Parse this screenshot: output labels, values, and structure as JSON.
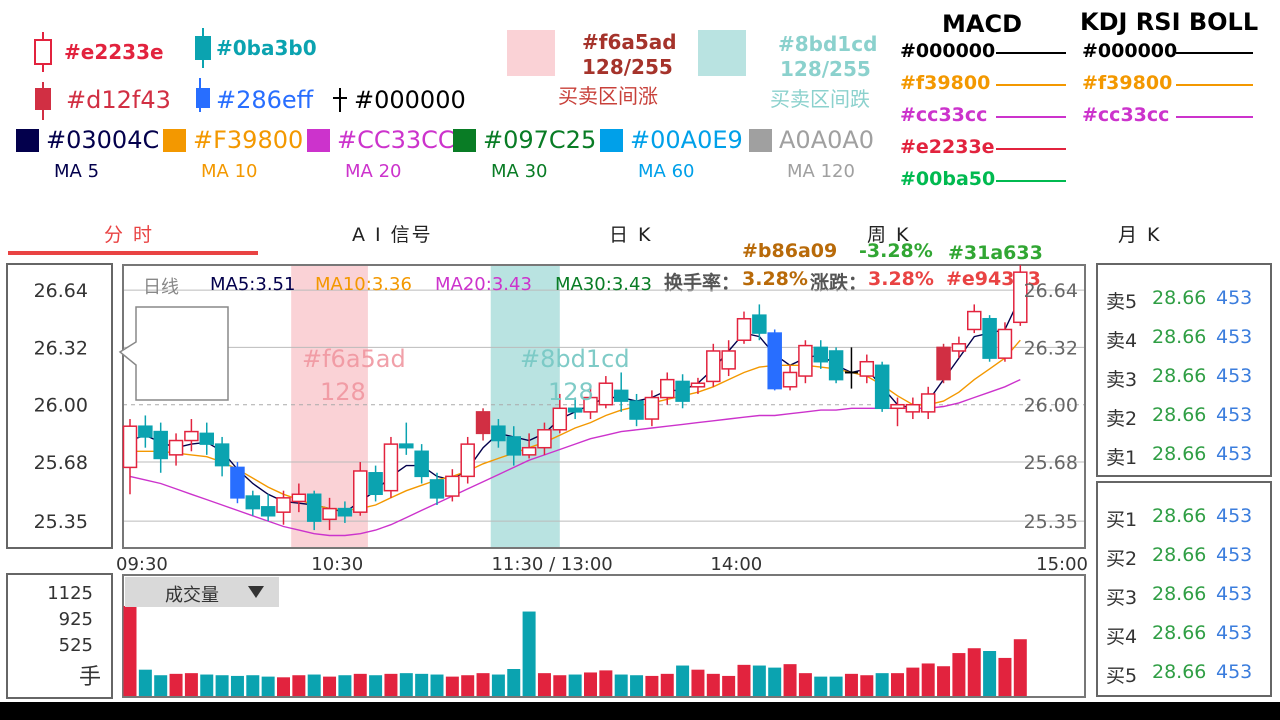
{
  "legend": {
    "candle_hollow_up": "#e2233e",
    "candle_solid_green": "#0ba3b0",
    "candle_solid_red": "#d12f43",
    "candle_solid_blue": "#286eff",
    "cross_black": "#000000",
    "ma_swatches": [
      {
        "hex": "#03004C",
        "name": "MA 5",
        "color": "#03004C"
      },
      {
        "hex": "#F39800",
        "name": "MA 10",
        "color": "#F39800"
      },
      {
        "hex": "#CC33CC",
        "name": "MA 20",
        "color": "#CC33CC"
      },
      {
        "hex": "#097C25",
        "name": "MA 30",
        "color": "#097C25"
      },
      {
        "hex": "#00A0E9",
        "name": "MA 60",
        "color": "#00A0E9"
      },
      {
        "hex": "A0A0A0",
        "name": "MA 120",
        "color": "#A0A0A0"
      }
    ],
    "rise_zone": {
      "hex": "#f6a5ad",
      "alpha": "128/255",
      "label": "买卖区间涨"
    },
    "fall_zone": {
      "hex": "#8bd1cd",
      "alpha": "128/255",
      "label": "买卖区间跌"
    }
  },
  "indicator_legend": {
    "macd_title": "MACD",
    "kdj_title": "KDJ  RSI  BOLL",
    "macd_lines": [
      {
        "hex": "#000000",
        "color": "#000000"
      },
      {
        "hex": "#f39800",
        "color": "#f39800"
      },
      {
        "hex": "#cc33cc",
        "color": "#cc33cc"
      },
      {
        "hex": "#e2233e",
        "color": "#e2233e"
      },
      {
        "hex": "#00ba50",
        "color": "#00ba50"
      }
    ],
    "kdj_lines": [
      {
        "hex": "#000000",
        "color": "#000000"
      },
      {
        "hex": "#f39800",
        "color": "#f39800"
      },
      {
        "hex": "#cc33cc",
        "color": "#cc33cc"
      }
    ]
  },
  "tabs": [
    "分 时",
    "A I 信号",
    "日  K",
    "周  K",
    "月  K"
  ],
  "active_tab": "分 时",
  "header_stats": {
    "turnover_hex": "#b86a09",
    "change_hex": "-3.28%",
    "change_hex_color": "#31a633",
    "green_hex": "#31a633",
    "red_hex": "#e94343",
    "turnover_label": "换手率：",
    "turnover_value": "3.28%",
    "change_label": "涨跌：",
    "change_value": "3.28%"
  },
  "ma_info": {
    "period": "日线",
    "ma5": "MA5:3.51",
    "ma10": "MA10:3.36",
    "ma20": "MA20:3.43",
    "ma30": "MA30:3.43"
  },
  "zone_labels": {
    "rise": [
      "#f6a5ad",
      "128"
    ],
    "fall": [
      "#8bd1cd",
      "128"
    ]
  },
  "volume": {
    "label": "成交量",
    "dropdown_icon": "triangle-down",
    "y_ticks": [
      "1125",
      "925",
      "525"
    ],
    "unit": "手"
  },
  "order_book": {
    "sell": [
      {
        "label": "卖5",
        "price": "28.66",
        "vol": "453"
      },
      {
        "label": "卖4",
        "price": "28.66",
        "vol": "453"
      },
      {
        "label": "卖3",
        "price": "28.66",
        "vol": "453"
      },
      {
        "label": "卖2",
        "price": "28.66",
        "vol": "453"
      },
      {
        "label": "卖1",
        "price": "28.66",
        "vol": "453"
      }
    ],
    "buy": [
      {
        "label": "买1",
        "price": "28.66",
        "vol": "453"
      },
      {
        "label": "买2",
        "price": "28.66",
        "vol": "453"
      },
      {
        "label": "买3",
        "price": "28.66",
        "vol": "453"
      },
      {
        "label": "买4",
        "price": "28.66",
        "vol": "453"
      },
      {
        "label": "买5",
        "price": "28.66",
        "vol": "453"
      }
    ]
  },
  "chart_data": {
    "type": "candlestick",
    "y_ticks": [
      "26.64",
      "26.32",
      "26.00",
      "25.68",
      "25.35"
    ],
    "y_tick_values": [
      26.64,
      26.32,
      26.0,
      25.68,
      25.35
    ],
    "ylim": [
      25.2,
      26.78
    ],
    "x_ticks": [
      "09:30",
      "10:30",
      "11:30 / 13:00",
      "14:00",
      "15:00"
    ],
    "x_tick_index": [
      0,
      13.5,
      27.5,
      39.5,
      53.5
    ],
    "rise_zone_index": [
      10.5,
      15.5
    ],
    "fall_zone_index": [
      23.5,
      28
    ],
    "prev_close": 26.0,
    "grid": true,
    "candles": [
      {
        "o": 25.65,
        "c": 25.88,
        "h": 25.92,
        "l": 25.5,
        "color": "#e2233e",
        "style": "hollow"
      },
      {
        "o": 25.88,
        "c": 25.82,
        "h": 25.94,
        "l": 25.76,
        "color": "#0ba3b0",
        "style": "solid"
      },
      {
        "o": 25.85,
        "c": 25.7,
        "h": 25.9,
        "l": 25.62,
        "color": "#0ba3b0",
        "style": "solid"
      },
      {
        "o": 25.72,
        "c": 25.8,
        "h": 25.84,
        "l": 25.66,
        "color": "#e2233e",
        "style": "hollow"
      },
      {
        "o": 25.8,
        "c": 25.85,
        "h": 25.92,
        "l": 25.74,
        "color": "#e2233e",
        "style": "hollow"
      },
      {
        "o": 25.84,
        "c": 25.78,
        "h": 25.9,
        "l": 25.72,
        "color": "#0ba3b0",
        "style": "solid"
      },
      {
        "o": 25.78,
        "c": 25.66,
        "h": 25.82,
        "l": 25.6,
        "color": "#0ba3b0",
        "style": "solid"
      },
      {
        "o": 25.65,
        "c": 25.48,
        "h": 25.68,
        "l": 25.45,
        "color": "#286eff",
        "style": "solid"
      },
      {
        "o": 25.49,
        "c": 25.42,
        "h": 25.52,
        "l": 25.38,
        "color": "#0ba3b0",
        "style": "solid"
      },
      {
        "o": 25.43,
        "c": 25.38,
        "h": 25.5,
        "l": 25.35,
        "color": "#0ba3b0",
        "style": "solid"
      },
      {
        "o": 25.4,
        "c": 25.48,
        "h": 25.52,
        "l": 25.33,
        "color": "#e2233e",
        "style": "hollow"
      },
      {
        "o": 25.46,
        "c": 25.5,
        "h": 25.56,
        "l": 25.4,
        "color": "#e2233e",
        "style": "hollow"
      },
      {
        "o": 25.5,
        "c": 25.35,
        "h": 25.52,
        "l": 25.3,
        "color": "#0ba3b0",
        "style": "solid"
      },
      {
        "o": 25.36,
        "c": 25.42,
        "h": 25.48,
        "l": 25.3,
        "color": "#e2233e",
        "style": "hollow"
      },
      {
        "o": 25.42,
        "c": 25.38,
        "h": 25.46,
        "l": 25.34,
        "color": "#0ba3b0",
        "style": "solid"
      },
      {
        "o": 25.4,
        "c": 25.63,
        "h": 25.68,
        "l": 25.38,
        "color": "#e2233e",
        "style": "hollow"
      },
      {
        "o": 25.62,
        "c": 25.5,
        "h": 25.66,
        "l": 25.46,
        "color": "#0ba3b0",
        "style": "solid"
      },
      {
        "o": 25.52,
        "c": 25.78,
        "h": 25.82,
        "l": 25.48,
        "color": "#e2233e",
        "style": "hollow"
      },
      {
        "o": 25.78,
        "c": 25.76,
        "h": 25.9,
        "l": 25.72,
        "color": "#0ba3b0",
        "style": "solid"
      },
      {
        "o": 25.74,
        "c": 25.6,
        "h": 25.78,
        "l": 25.56,
        "color": "#0ba3b0",
        "style": "solid"
      },
      {
        "o": 25.58,
        "c": 25.48,
        "h": 25.62,
        "l": 25.44,
        "color": "#0ba3b0",
        "style": "solid"
      },
      {
        "o": 25.49,
        "c": 25.6,
        "h": 25.64,
        "l": 25.46,
        "color": "#e2233e",
        "style": "hollow"
      },
      {
        "o": 25.6,
        "c": 25.78,
        "h": 25.82,
        "l": 25.56,
        "color": "#e2233e",
        "style": "hollow"
      },
      {
        "o": 25.84,
        "c": 25.96,
        "h": 25.98,
        "l": 25.8,
        "color": "#d12f43",
        "style": "solid"
      },
      {
        "o": 25.88,
        "c": 25.8,
        "h": 25.92,
        "l": 25.76,
        "color": "#0ba3b0",
        "style": "solid"
      },
      {
        "o": 25.82,
        "c": 25.72,
        "h": 25.88,
        "l": 25.66,
        "color": "#0ba3b0",
        "style": "solid"
      },
      {
        "o": 25.72,
        "c": 25.76,
        "h": 25.84,
        "l": 25.7,
        "color": "#e2233e",
        "style": "hollow"
      },
      {
        "o": 25.76,
        "c": 25.86,
        "h": 25.9,
        "l": 25.72,
        "color": "#e2233e",
        "style": "hollow"
      },
      {
        "o": 25.86,
        "c": 25.98,
        "h": 26.06,
        "l": 25.84,
        "color": "#e2233e",
        "style": "hollow"
      },
      {
        "o": 25.98,
        "c": 25.96,
        "h": 26.04,
        "l": 25.92,
        "color": "#0ba3b0",
        "style": "solid"
      },
      {
        "o": 25.96,
        "c": 26.04,
        "h": 26.1,
        "l": 25.92,
        "color": "#e2233e",
        "style": "hollow"
      },
      {
        "o": 26.0,
        "c": 26.12,
        "h": 26.16,
        "l": 25.98,
        "color": "#e2233e",
        "style": "hollow"
      },
      {
        "o": 26.08,
        "c": 26.02,
        "h": 26.18,
        "l": 25.96,
        "color": "#0ba3b0",
        "style": "solid"
      },
      {
        "o": 26.02,
        "c": 25.92,
        "h": 26.06,
        "l": 25.88,
        "color": "#0ba3b0",
        "style": "solid"
      },
      {
        "o": 25.92,
        "c": 26.04,
        "h": 26.08,
        "l": 25.88,
        "color": "#e2233e",
        "style": "hollow"
      },
      {
        "o": 26.04,
        "c": 26.14,
        "h": 26.18,
        "l": 26.0,
        "color": "#e2233e",
        "style": "hollow"
      },
      {
        "o": 26.13,
        "c": 26.02,
        "h": 26.17,
        "l": 25.98,
        "color": "#0ba3b0",
        "style": "solid"
      },
      {
        "o": 26.1,
        "c": 26.12,
        "h": 26.15,
        "l": 26.06,
        "color": "#e2233e",
        "style": "hollow"
      },
      {
        "o": 26.13,
        "c": 26.3,
        "h": 26.34,
        "l": 26.1,
        "color": "#e2233e",
        "style": "hollow"
      },
      {
        "o": 26.2,
        "c": 26.3,
        "h": 26.36,
        "l": 26.16,
        "color": "#e2233e",
        "style": "hollow"
      },
      {
        "o": 26.36,
        "c": 26.48,
        "h": 26.52,
        "l": 26.34,
        "color": "#e2233e",
        "style": "hollow"
      },
      {
        "o": 26.5,
        "c": 26.4,
        "h": 26.56,
        "l": 26.36,
        "color": "#0ba3b0",
        "style": "solid"
      },
      {
        "o": 26.4,
        "c": 26.09,
        "h": 26.42,
        "l": 26.08,
        "color": "#286eff",
        "style": "solid"
      },
      {
        "o": 26.1,
        "c": 26.18,
        "h": 26.22,
        "l": 26.08,
        "color": "#e2233e",
        "style": "hollow"
      },
      {
        "o": 26.16,
        "c": 26.33,
        "h": 26.36,
        "l": 26.12,
        "color": "#e2233e",
        "style": "hollow"
      },
      {
        "o": 26.32,
        "c": 26.24,
        "h": 26.36,
        "l": 26.2,
        "color": "#0ba3b0",
        "style": "solid"
      },
      {
        "o": 26.3,
        "c": 26.14,
        "h": 26.32,
        "l": 26.12,
        "color": "#0ba3b0",
        "style": "solid"
      },
      {
        "o": 26.18,
        "c": 26.18,
        "h": 26.32,
        "l": 26.09,
        "color": "#000000",
        "style": "cross"
      },
      {
        "o": 26.16,
        "c": 26.24,
        "h": 26.28,
        "l": 26.12,
        "color": "#e2233e",
        "style": "hollow"
      },
      {
        "o": 26.22,
        "c": 25.98,
        "h": 26.24,
        "l": 25.96,
        "color": "#0ba3b0",
        "style": "solid"
      },
      {
        "o": 25.98,
        "c": 26.0,
        "h": 26.04,
        "l": 25.88,
        "color": "#e2233e",
        "style": "hollow"
      },
      {
        "o": 25.96,
        "c": 26.0,
        "h": 26.04,
        "l": 25.92,
        "color": "#e2233e",
        "style": "hollow"
      },
      {
        "o": 25.96,
        "c": 26.06,
        "h": 26.1,
        "l": 25.92,
        "color": "#e2233e",
        "style": "hollow"
      },
      {
        "o": 26.14,
        "c": 26.32,
        "h": 26.34,
        "l": 26.12,
        "color": "#d12f43",
        "style": "solid"
      },
      {
        "o": 26.3,
        "c": 26.34,
        "h": 26.38,
        "l": 26.26,
        "color": "#e2233e",
        "style": "hollow"
      },
      {
        "o": 26.42,
        "c": 26.52,
        "h": 26.56,
        "l": 26.4,
        "color": "#e2233e",
        "style": "hollow"
      },
      {
        "o": 26.48,
        "c": 26.26,
        "h": 26.5,
        "l": 26.24,
        "color": "#0ba3b0",
        "style": "solid"
      },
      {
        "o": 26.26,
        "c": 26.42,
        "h": 26.46,
        "l": 26.24,
        "color": "#e2233e",
        "style": "hollow"
      },
      {
        "o": 26.46,
        "c": 26.74,
        "h": 26.78,
        "l": 26.44,
        "color": "#e2233e",
        "style": "hollow"
      }
    ],
    "ma_lines": [
      {
        "name": "MA5",
        "color": "#03004C",
        "values": [
          25.8,
          25.83,
          25.79,
          25.76,
          25.78,
          25.79,
          25.74,
          25.64,
          25.56,
          25.5,
          25.46,
          25.45,
          25.44,
          25.42,
          25.4,
          25.46,
          25.52,
          25.6,
          25.66,
          25.66,
          25.6,
          25.58,
          25.64,
          25.76,
          25.84,
          25.82,
          25.8,
          25.84,
          25.92,
          25.96,
          26.0,
          26.04,
          26.04,
          26.02,
          26.04,
          26.08,
          26.08,
          26.12,
          26.2,
          26.3,
          26.4,
          26.38,
          26.28,
          26.22,
          26.26,
          26.28,
          26.22,
          26.18,
          26.2,
          26.1,
          26.0,
          25.98,
          26.02,
          26.14,
          26.26,
          26.38,
          26.4,
          26.42,
          26.6
        ]
      },
      {
        "name": "MA10",
        "color": "#F39800",
        "values": [
          25.74,
          25.74,
          25.74,
          25.73,
          25.72,
          25.71,
          25.68,
          25.64,
          25.59,
          25.54,
          25.5,
          25.47,
          25.44,
          25.42,
          25.41,
          25.42,
          25.44,
          25.48,
          25.52,
          25.55,
          25.58,
          25.6,
          25.63,
          25.67,
          25.7,
          25.73,
          25.76,
          25.79,
          25.83,
          25.87,
          25.9,
          25.94,
          25.97,
          25.99,
          26.01,
          26.03,
          26.05,
          26.07,
          26.1,
          26.14,
          26.18,
          26.21,
          26.22,
          26.22,
          26.22,
          26.21,
          26.2,
          26.18,
          26.16,
          26.11,
          26.05,
          26.0,
          26.0,
          26.02,
          26.07,
          26.14,
          26.2,
          26.26,
          26.36
        ]
      },
      {
        "name": "MA20",
        "color": "#CC33CC",
        "values": [
          25.6,
          25.58,
          25.56,
          25.53,
          25.5,
          25.47,
          25.44,
          25.41,
          25.38,
          25.35,
          25.32,
          25.3,
          25.28,
          25.27,
          25.27,
          25.28,
          25.3,
          25.33,
          25.37,
          25.41,
          25.45,
          25.49,
          25.53,
          25.57,
          25.61,
          25.65,
          25.69,
          25.72,
          25.75,
          25.78,
          25.81,
          25.83,
          25.85,
          25.86,
          25.87,
          25.88,
          25.89,
          25.9,
          25.91,
          25.92,
          25.93,
          25.94,
          25.94,
          25.95,
          25.96,
          25.97,
          25.97,
          25.98,
          25.98,
          25.98,
          25.98,
          25.98,
          25.98,
          25.99,
          26.01,
          26.04,
          26.07,
          26.1,
          26.14
        ]
      }
    ],
    "volume": {
      "ylim": [
        0,
        1300
      ],
      "values": [
        1300,
        380,
        300,
        320,
        330,
        310,
        300,
        290,
        300,
        280,
        270,
        300,
        310,
        280,
        300,
        320,
        300,
        320,
        330,
        320,
        310,
        280,
        300,
        330,
        310,
        390,
        1220,
        330,
        300,
        310,
        340,
        370,
        310,
        300,
        290,
        320,
        440,
        380,
        320,
        290,
        450,
        440,
        410,
        460,
        330,
        280,
        280,
        320,
        300,
        330,
        330,
        410,
        470,
        430,
        620,
        690,
        650,
        550,
        820
      ],
      "colors": [
        "#e2233e",
        "#0ba3b0",
        "#0ba3b0",
        "#e2233e",
        "#e2233e",
        "#0ba3b0",
        "#0ba3b0",
        "#0ba3b0",
        "#0ba3b0",
        "#0ba3b0",
        "#e2233e",
        "#e2233e",
        "#0ba3b0",
        "#e2233e",
        "#0ba3b0",
        "#e2233e",
        "#0ba3b0",
        "#e2233e",
        "#0ba3b0",
        "#0ba3b0",
        "#0ba3b0",
        "#e2233e",
        "#e2233e",
        "#e2233e",
        "#0ba3b0",
        "#0ba3b0",
        "#0ba3b0",
        "#e2233e",
        "#e2233e",
        "#0ba3b0",
        "#e2233e",
        "#e2233e",
        "#0ba3b0",
        "#0ba3b0",
        "#e2233e",
        "#e2233e",
        "#0ba3b0",
        "#e2233e",
        "#e2233e",
        "#e2233e",
        "#e2233e",
        "#0ba3b0",
        "#0ba3b0",
        "#e2233e",
        "#e2233e",
        "#0ba3b0",
        "#0ba3b0",
        "#e2233e",
        "#e2233e",
        "#0ba3b0",
        "#e2233e",
        "#e2233e",
        "#e2233e",
        "#e2233e",
        "#e2233e",
        "#e2233e",
        "#0ba3b0",
        "#e2233e",
        "#e2233e"
      ]
    }
  }
}
